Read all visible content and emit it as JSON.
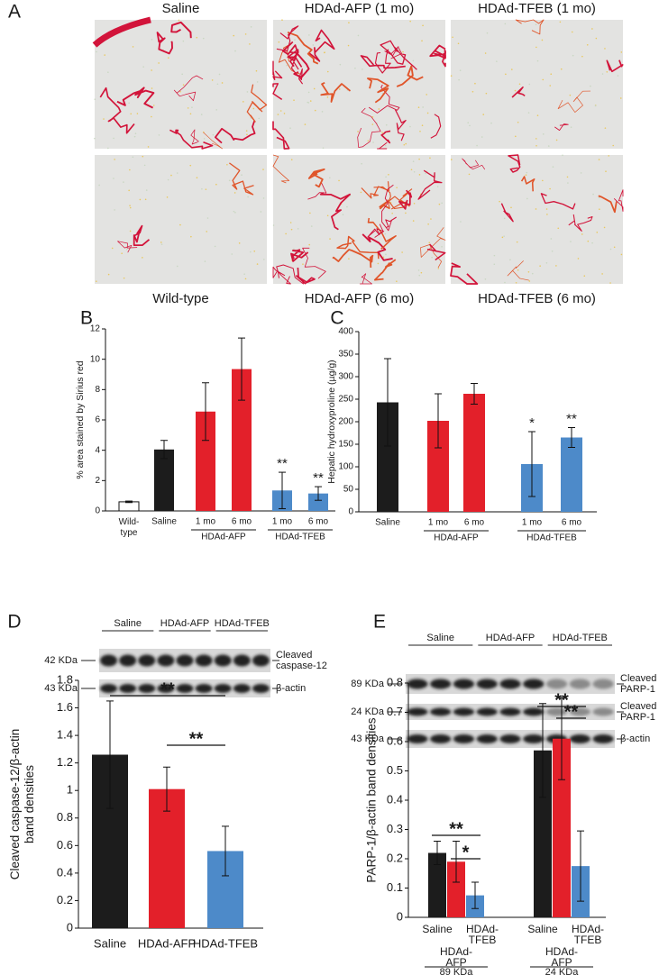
{
  "panel_labels": [
    "A",
    "B",
    "C",
    "D",
    "E"
  ],
  "micrographs": {
    "top": [
      "Saline",
      "HDAd-AFP (1 mo)",
      "HDAd-TFEB (1 mo)"
    ],
    "bottom": [
      "Wild-type",
      "HDAd-AFP (6 mo)",
      "HDAd-TFEB (6 mo)"
    ]
  },
  "blots": [
    {
      "groups": [
        "Saline",
        "HDAd-AFP",
        "HDAd-TFEB"
      ],
      "markers": [
        "42 KDa",
        "43 KDa"
      ],
      "bands": [
        "Cleaved caspase-12",
        "β-actin"
      ]
    },
    {
      "groups": [
        "Saline",
        "HDAd-AFP",
        "HDAd-TFEB"
      ],
      "markers": [
        "89 KDa",
        "24 KDa",
        "43 KDa"
      ],
      "bands": [
        "Cleaved PARP-1",
        "Cleaved PARP-1",
        "β-actin"
      ]
    }
  ],
  "chart_data": [
    {
      "type": "bar",
      "ylabel": "% area stained by Sirius red",
      "categories": [
        "Wild-type",
        "Saline",
        "1 mo",
        "6 mo",
        "1 mo",
        "6 mo"
      ],
      "group_labels": [
        "HDAd-AFP",
        "HDAd-TFEB"
      ],
      "values": [
        0.6,
        4.05,
        6.55,
        9.35,
        1.35,
        1.15
      ],
      "errors": [
        0.05,
        0.6,
        1.9,
        2.05,
        1.2,
        0.45
      ],
      "colors": [
        "#ffffff",
        "#1c1c1c",
        "#e3202a",
        "#e3202a",
        "#4d8ac9",
        "#4d8ac9"
      ],
      "significance": [
        null,
        null,
        null,
        null,
        "**",
        "**"
      ],
      "ylim": [
        0,
        12
      ],
      "yticks": [
        0,
        2,
        4,
        6,
        8,
        10,
        12
      ]
    },
    {
      "type": "bar",
      "ylabel": "Hepatic hydroxyproline (µg/g)",
      "categories": [
        "Saline",
        "1 mo",
        "6 mo",
        "1 mo",
        "6 mo"
      ],
      "group_labels": [
        "HDAd-AFP",
        "HDAd-TFEB"
      ],
      "values": [
        243,
        202,
        262,
        106,
        165
      ],
      "errors": [
        97,
        60,
        23,
        72,
        22
      ],
      "colors": [
        "#1c1c1c",
        "#e3202a",
        "#e3202a",
        "#4d8ac9",
        "#4d8ac9"
      ],
      "significance": [
        null,
        null,
        null,
        "*",
        "**"
      ],
      "ylim": [
        0,
        400
      ],
      "yticks": [
        0,
        50,
        100,
        150,
        200,
        250,
        300,
        350,
        400
      ]
    },
    {
      "type": "bar",
      "ylabel": "Cleaved caspase-12/β-actin band densities",
      "categories": [
        "Saline",
        "HDAd-AFP",
        "HDAd-TFEB"
      ],
      "values": [
        1.26,
        1.01,
        0.56
      ],
      "errors": [
        0.39,
        0.16,
        0.18
      ],
      "colors": [
        "#1c1c1c",
        "#e3202a",
        "#4d8ac9"
      ],
      "comparisons": [
        {
          "pair": [
            "Saline",
            "HDAd-TFEB"
          ],
          "label": "**"
        },
        {
          "pair": [
            "HDAd-AFP",
            "HDAd-TFEB"
          ],
          "label": "**"
        }
      ],
      "ylim": [
        0,
        1.8
      ],
      "yticks": [
        0,
        0.2,
        0.4,
        0.6,
        0.8,
        1,
        1.2,
        1.4,
        1.6,
        1.8
      ]
    },
    {
      "type": "grouped_bar",
      "ylabel": "PARP-1/β-actin band densities",
      "categories": [
        "89 KDa",
        "24 KDa"
      ],
      "series": [
        {
          "name": "Saline",
          "color": "#1c1c1c",
          "values": [
            0.22,
            0.57
          ],
          "errors": [
            0.04,
            0.16
          ]
        },
        {
          "name": "HDAd-AFP",
          "color": "#e3202a",
          "values": [
            0.19,
            0.61
          ],
          "errors": [
            0.07,
            0.14
          ]
        },
        {
          "name": "HDAd-TFEB",
          "color": "#4d8ac9",
          "values": [
            0.075,
            0.175
          ],
          "errors": [
            0.045,
            0.12
          ]
        }
      ],
      "comparisons": [
        {
          "category": "89 KDa",
          "pair": [
            "Saline",
            "HDAd-TFEB"
          ],
          "label": "**"
        },
        {
          "category": "89 KDa",
          "pair": [
            "HDAd-AFP",
            "HDAd-TFEB"
          ],
          "label": "*"
        },
        {
          "category": "24 KDa",
          "pair": [
            "Saline",
            "HDAd-TFEB"
          ],
          "label": "**"
        },
        {
          "category": "24 KDa",
          "pair": [
            "HDAd-AFP",
            "HDAd-TFEB"
          ],
          "label": "**"
        }
      ],
      "ylim": [
        0,
        0.8
      ],
      "yticks": [
        0,
        0.1,
        0.2,
        0.3,
        0.4,
        0.5,
        0.6,
        0.7,
        0.8
      ]
    }
  ]
}
